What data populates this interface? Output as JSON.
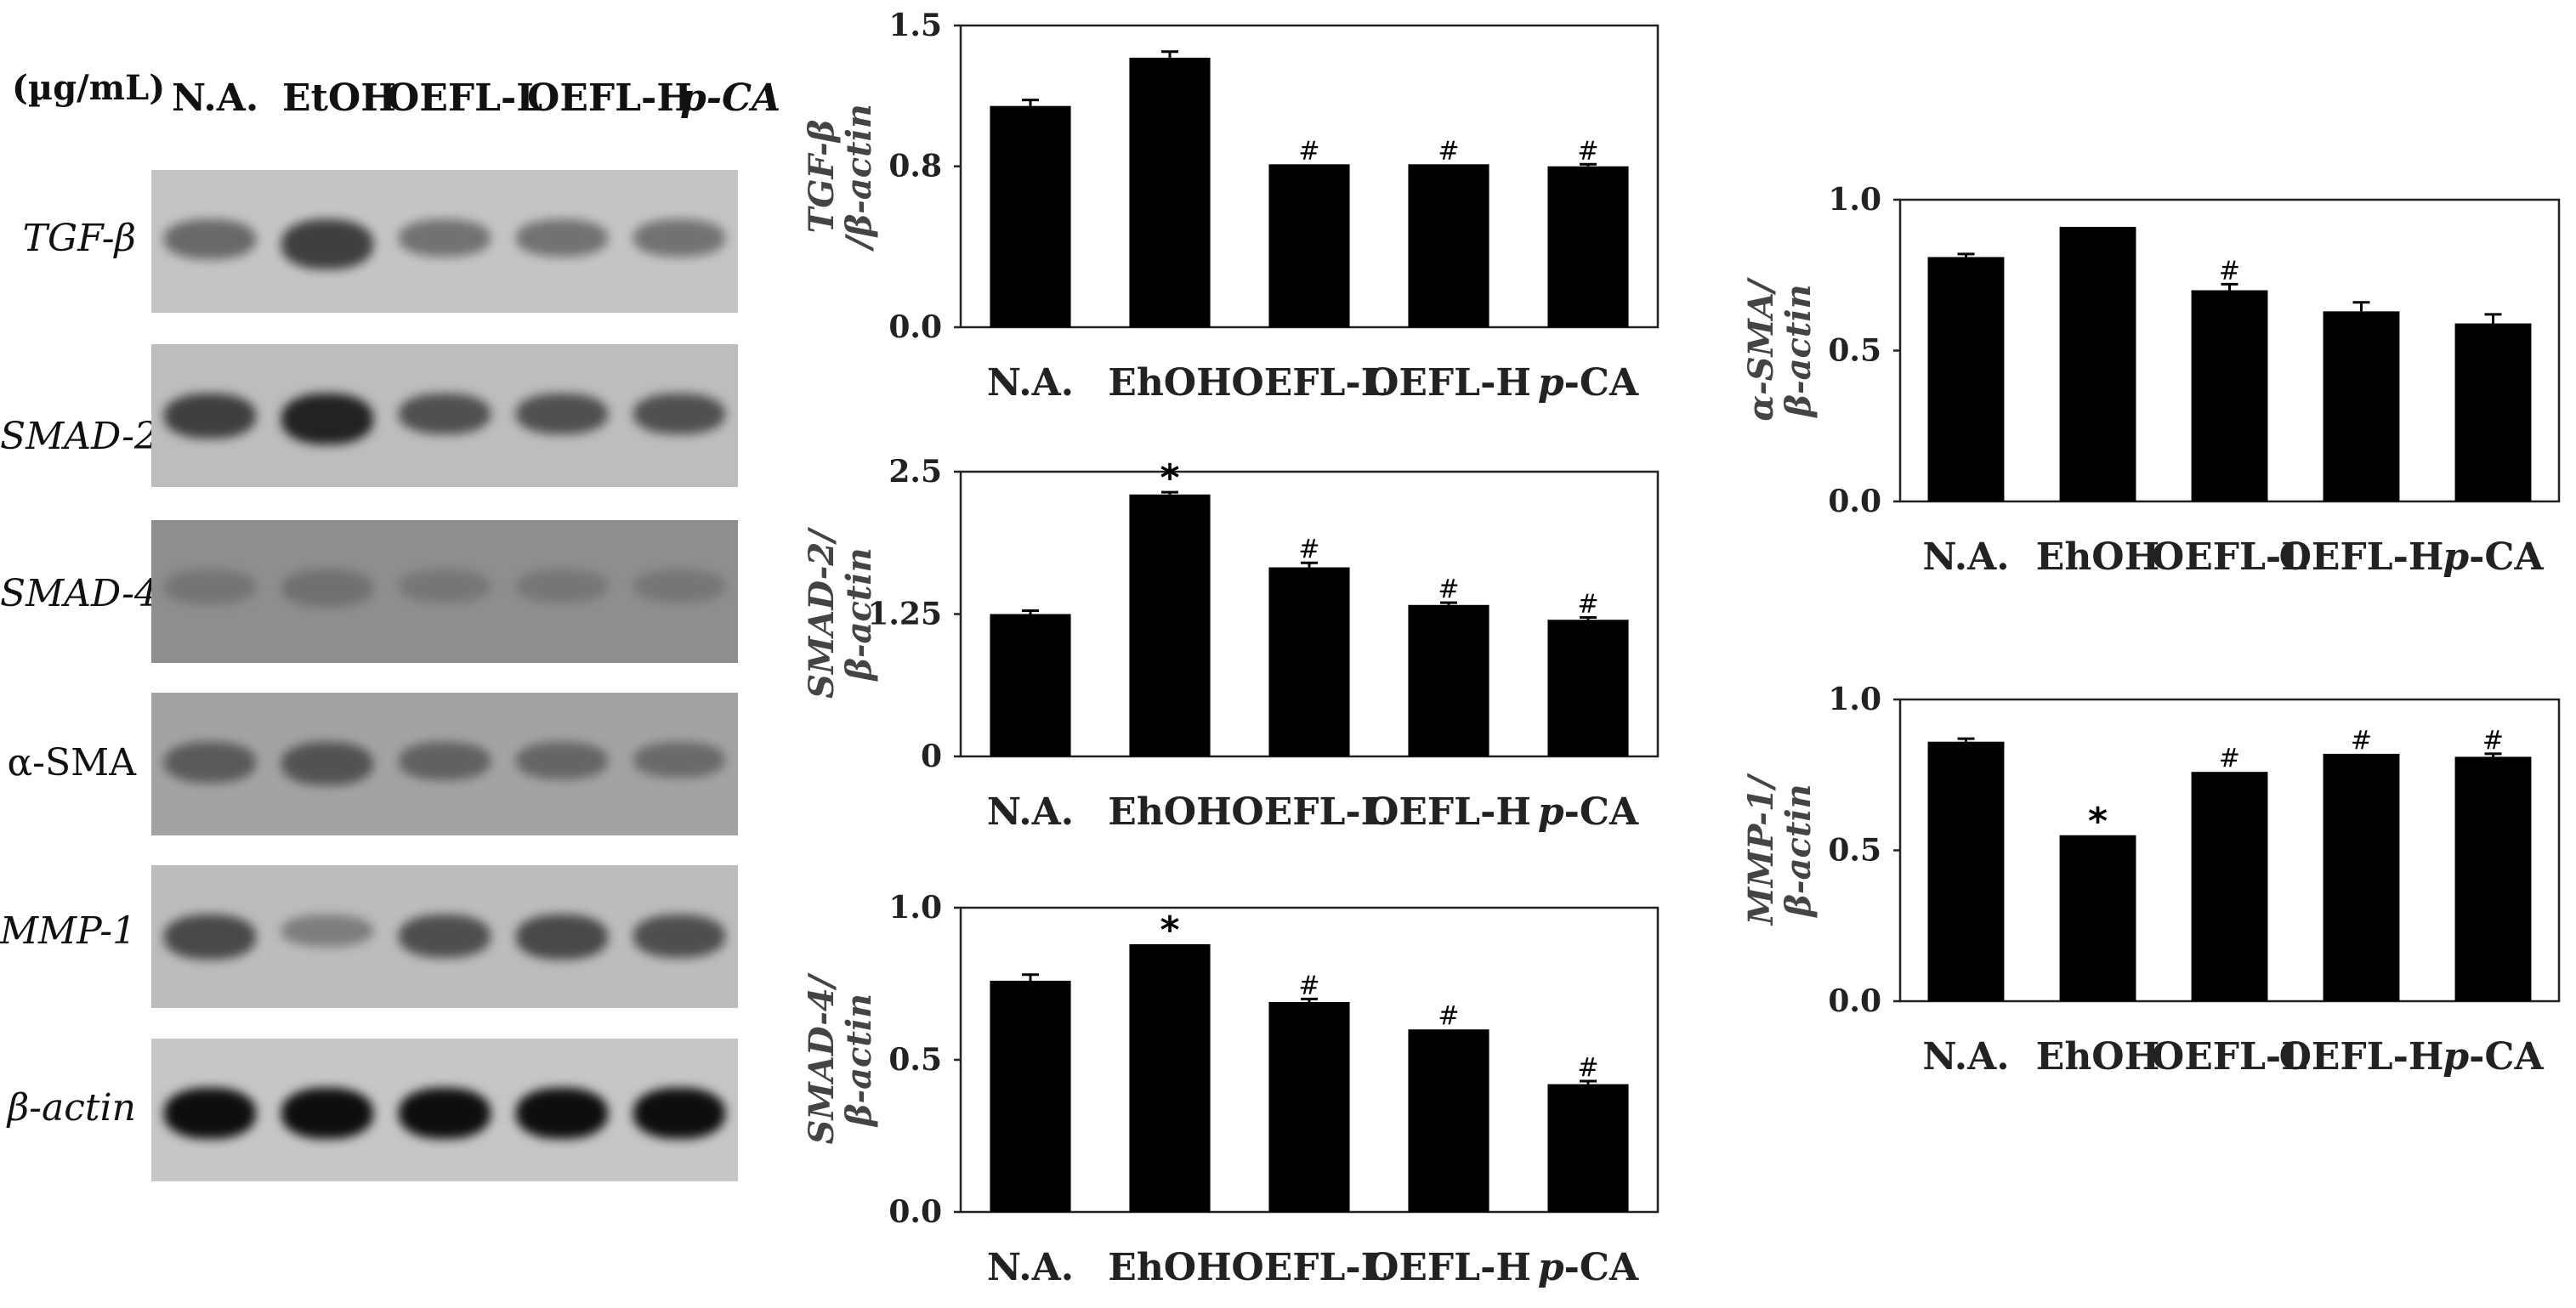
{
  "gel": {
    "unit": "(µg/mL)",
    "lanes": [
      "N.A.",
      "EtOH",
      "OEFL-L",
      "OEFL-H",
      "p-CA"
    ],
    "rows": [
      {
        "gene": "TGF-β",
        "bg": "#c4c4c4",
        "band_color": "#3a3a3a",
        "intensities": [
          0.55,
          0.95,
          0.45,
          0.45,
          0.45
        ]
      },
      {
        "gene": "SMAD-2",
        "bg": "#bdbdbd",
        "band_color": "#222222",
        "intensities": [
          0.75,
          1.0,
          0.6,
          0.6,
          0.6
        ]
      },
      {
        "gene": "SMAD-4",
        "bg": "#8e8e8e",
        "band_color": "#5c5c5c",
        "intensities": [
          0.35,
          0.45,
          0.3,
          0.3,
          0.3
        ]
      },
      {
        "gene": "α-SMA",
        "bg": "#a3a3a3",
        "band_color": "#3b3b3b",
        "intensities": [
          0.6,
          0.7,
          0.5,
          0.45,
          0.4
        ]
      },
      {
        "gene": "MMP-1",
        "bg": "#bcbcbc",
        "band_color": "#2e2e2e",
        "intensities": [
          0.75,
          0.25,
          0.7,
          0.75,
          0.7
        ]
      },
      {
        "gene": "β-actin",
        "bg": "#c6c6c6",
        "band_color": "#0e0e0e",
        "intensities": [
          1.0,
          1.0,
          1.0,
          1.0,
          1.0
        ]
      }
    ]
  },
  "chart_data": [
    {
      "type": "bar",
      "id": "tgf",
      "ylabel_lines": [
        "TGF-β",
        "/β-actin"
      ],
      "categories": [
        "N.A.",
        "EhOH",
        "OEFL-L",
        "OEFL-H",
        "p-CA"
      ],
      "values": [
        1.1,
        1.34,
        0.81,
        0.81,
        0.8
      ],
      "errors": [
        0.03,
        0.03,
        0.0,
        0.0,
        0.01
      ],
      "marks": [
        "",
        "",
        "#",
        "#",
        "#"
      ],
      "ylim": [
        0,
        1.5
      ],
      "yticks": [
        0,
        0.8,
        1.5
      ],
      "ytick_labels": [
        "0.0",
        "0.8",
        "1.5"
      ]
    },
    {
      "type": "bar",
      "id": "smad2",
      "ylabel_lines": [
        "SMAD-2/",
        "β-actin"
      ],
      "categories": [
        "N.A.",
        "EhOH",
        "OEFL-L",
        "OEFL-H",
        "p-CA"
      ],
      "values": [
        1.25,
        2.3,
        1.66,
        1.33,
        1.2
      ],
      "errors": [
        0.03,
        0.02,
        0.04,
        0.02,
        0.02
      ],
      "marks": [
        "",
        "*",
        "#",
        "#",
        "#"
      ],
      "ylim": [
        0,
        2.5
      ],
      "yticks": [
        0,
        1.25,
        2.5
      ],
      "ytick_labels": [
        "0",
        "1.25",
        "2.5"
      ]
    },
    {
      "type": "bar",
      "id": "smad4",
      "ylabel_lines": [
        "SMAD-4/",
        "β-actin"
      ],
      "categories": [
        "N.A.",
        "EhOH",
        "OEFL-L",
        "OEFL-H",
        "p-CA"
      ],
      "values": [
        0.76,
        0.88,
        0.69,
        0.6,
        0.42
      ],
      "errors": [
        0.02,
        0.0,
        0.01,
        0.0,
        0.01
      ],
      "marks": [
        "",
        "*",
        "#",
        "#",
        "#"
      ],
      "ylim": [
        0,
        1.0
      ],
      "yticks": [
        0,
        0.5,
        1.0
      ],
      "ytick_labels": [
        "0.0",
        "0.5",
        "1.0"
      ]
    },
    {
      "type": "bar",
      "id": "asma",
      "ylabel_lines": [
        "α-SMA/",
        "β-actin"
      ],
      "categories": [
        "N.A.",
        "EhOH",
        "OEFL-L",
        "OEFL-H",
        "p-CA"
      ],
      "values": [
        0.81,
        0.91,
        0.7,
        0.63,
        0.59
      ],
      "errors": [
        0.01,
        0.0,
        0.02,
        0.03,
        0.03
      ],
      "marks": [
        "",
        "",
        "#",
        "",
        ""
      ],
      "ylim": [
        0,
        1.0
      ],
      "yticks": [
        0,
        0.5,
        1.0
      ],
      "ytick_labels": [
        "0.0",
        "0.5",
        "1.0"
      ]
    },
    {
      "type": "bar",
      "id": "mmp1",
      "ylabel_lines": [
        "MMP-1/",
        "β-actin"
      ],
      "categories": [
        "N.A.",
        "EhOH",
        "OEFL-L",
        "OEFL-H",
        "p-CA"
      ],
      "values": [
        0.86,
        0.55,
        0.76,
        0.82,
        0.81
      ],
      "errors": [
        0.01,
        0.0,
        0.0,
        0.0,
        0.01
      ],
      "marks": [
        "",
        "*",
        "#",
        "#",
        "#"
      ],
      "ylim": [
        0,
        1.0
      ],
      "yticks": [
        0,
        0.5,
        1.0
      ],
      "ytick_labels": [
        "0.0",
        "0.5",
        "1.0"
      ]
    }
  ]
}
